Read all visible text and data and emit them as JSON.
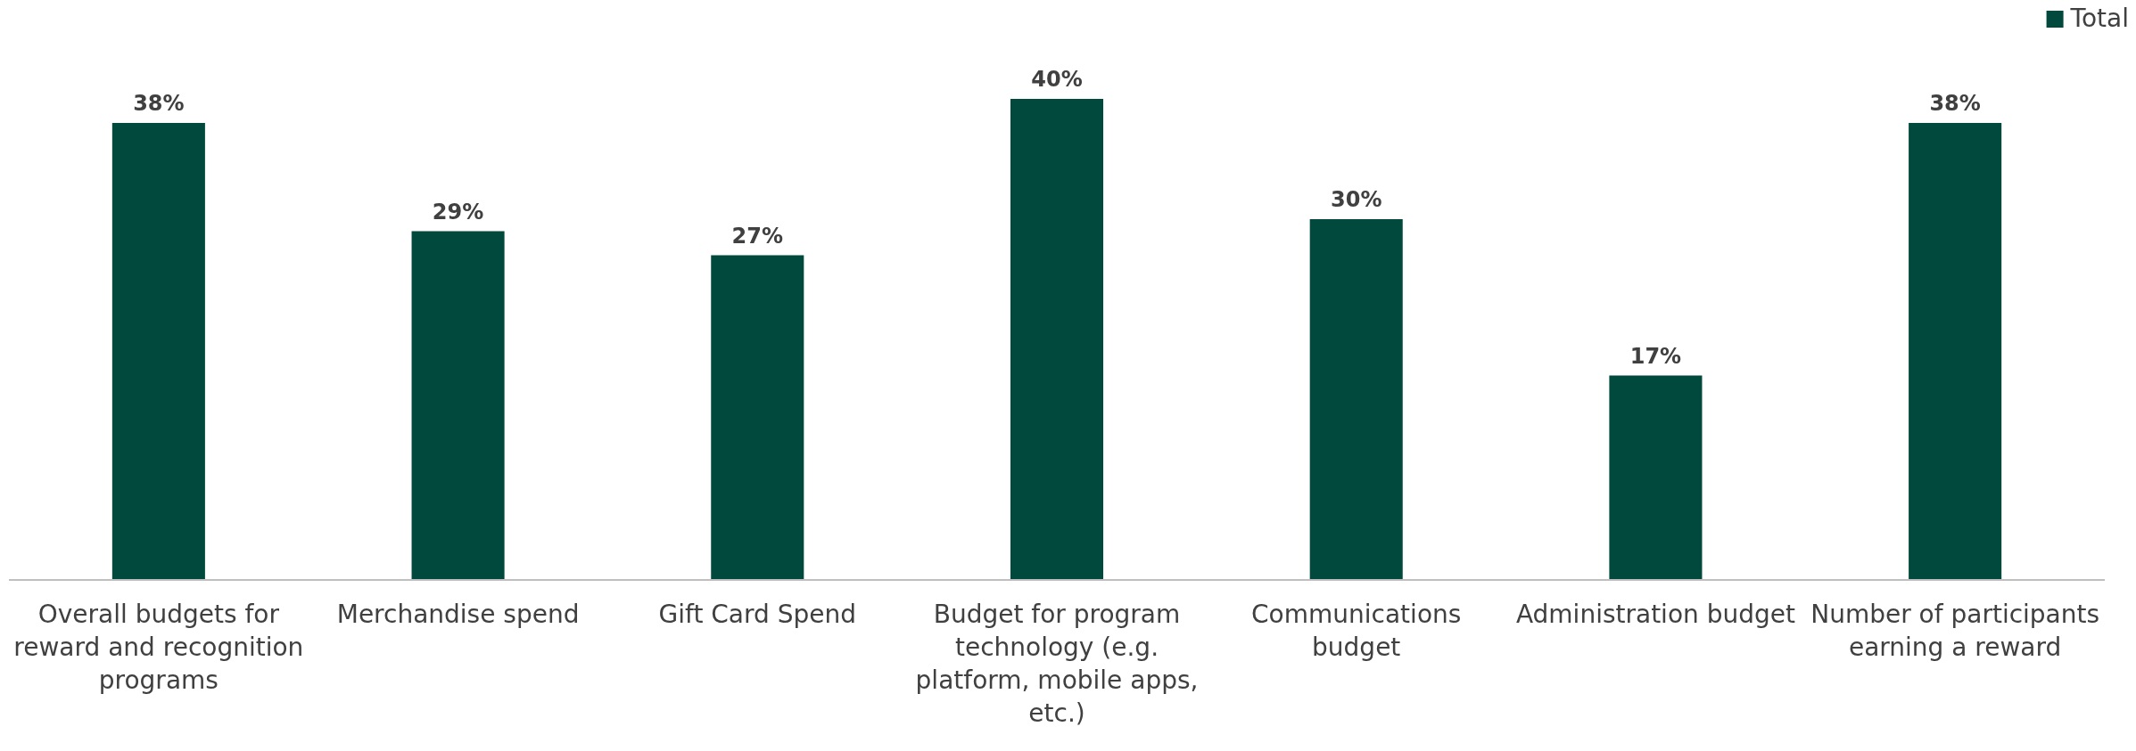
{
  "chart_data": {
    "type": "bar",
    "categories": [
      "Overall budgets for reward and recognition programs",
      "Merchandise spend",
      "Gift Card Spend",
      "Budget for program technology (e.g. platform, mobile apps, etc.)",
      "Communications budget",
      "Administration budget",
      "Number of participants earning a reward"
    ],
    "series": [
      {
        "name": "Total",
        "color": "#00493c",
        "values": [
          38,
          29,
          27,
          40,
          30,
          17,
          38
        ],
        "value_labels": [
          "38%",
          "29%",
          "27%",
          "40%",
          "30%",
          "17%",
          "38%"
        ]
      }
    ],
    "tick_labels": "x",
    "legend": "top right"
  }
}
